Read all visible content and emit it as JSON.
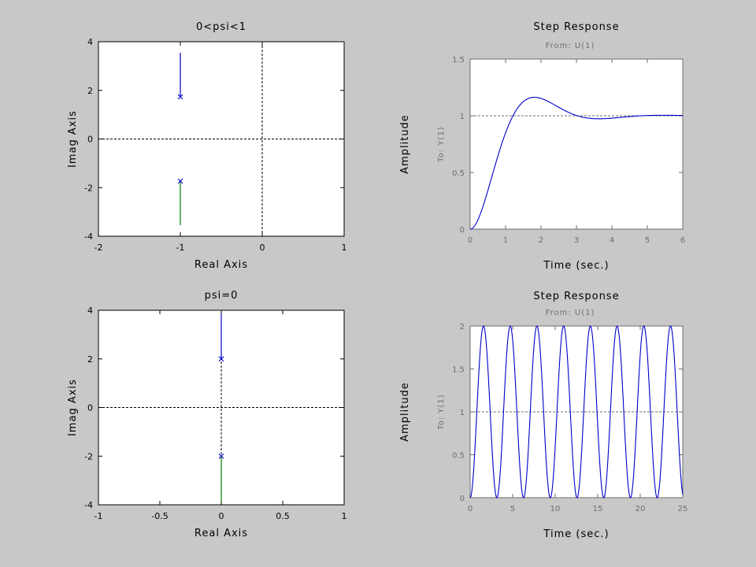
{
  "figure": {
    "background": "#c8c8c8"
  },
  "chart_data": [
    {
      "type": "scatter",
      "title": "0<psi<1",
      "xlabel": "Real Axis",
      "ylabel": "Imag Axis",
      "xlim": [
        -2,
        1
      ],
      "ylim": [
        -4,
        4
      ],
      "xticks": [
        "-2",
        "-1",
        "0",
        "1"
      ],
      "yticks": [
        "-4",
        "-2",
        "0",
        "2",
        "4"
      ],
      "poles": [
        [
          -1,
          1.732
        ],
        [
          -1,
          -1.732
        ]
      ],
      "locus": [
        {
          "color": "#0000cc",
          "x": [
            -1,
            -1
          ],
          "y": [
            1.732,
            3.55
          ]
        },
        {
          "color": "#008000",
          "x": [
            -1,
            -1
          ],
          "y": [
            -1.732,
            -3.55
          ]
        }
      ],
      "reference_lines": {
        "x": 0,
        "y": 0
      }
    },
    {
      "type": "line",
      "title": "Step Response",
      "subtitle": "From: U(1)",
      "xlabel": "Time (sec.)",
      "ylabel": "Amplitude",
      "ylabel2": "To: Y(1)",
      "xlim": [
        0,
        6
      ],
      "ylim": [
        0,
        1.5
      ],
      "xticks": [
        "0",
        "1",
        "2",
        "3",
        "4",
        "5",
        "6"
      ],
      "yticks": [
        "0",
        "0.5",
        "1",
        "1.5"
      ],
      "reference_line": 1,
      "series": [
        {
          "color": "#0000cc",
          "wn": 2,
          "zeta": 0.5
        }
      ]
    },
    {
      "type": "scatter",
      "title": "psi=0",
      "xlabel": "Real Axis",
      "ylabel": "Imag Axis",
      "xlim": [
        -1,
        1
      ],
      "ylim": [
        -4,
        4
      ],
      "xticks": [
        "-1",
        "-0.5",
        "0",
        "0.5",
        "1"
      ],
      "yticks": [
        "-4",
        "-2",
        "0",
        "2",
        "4"
      ],
      "poles": [
        [
          0,
          2
        ],
        [
          0,
          -2
        ]
      ],
      "locus": [
        {
          "color": "#0000cc",
          "x": [
            0,
            0
          ],
          "y": [
            2,
            3.85
          ]
        },
        {
          "color": "#008000",
          "x": [
            0,
            0
          ],
          "y": [
            -2,
            -3.85
          ]
        }
      ],
      "reference_lines": {
        "x": 0,
        "y": 0
      }
    },
    {
      "type": "line",
      "title": "Step Response",
      "subtitle": "From: U(1)",
      "xlabel": "Time (sec.)",
      "ylabel": "Amplitude",
      "ylabel2": "To: Y(1)",
      "xlim": [
        0,
        25
      ],
      "ylim": [
        0,
        2
      ],
      "xticks": [
        "0",
        "5",
        "10",
        "15",
        "20",
        "25"
      ],
      "yticks": [
        "0",
        "0.5",
        "1",
        "1.5",
        "2"
      ],
      "reference_line": 1,
      "series": [
        {
          "color": "#0000cc",
          "wn": 2,
          "zeta": 0
        }
      ]
    }
  ]
}
